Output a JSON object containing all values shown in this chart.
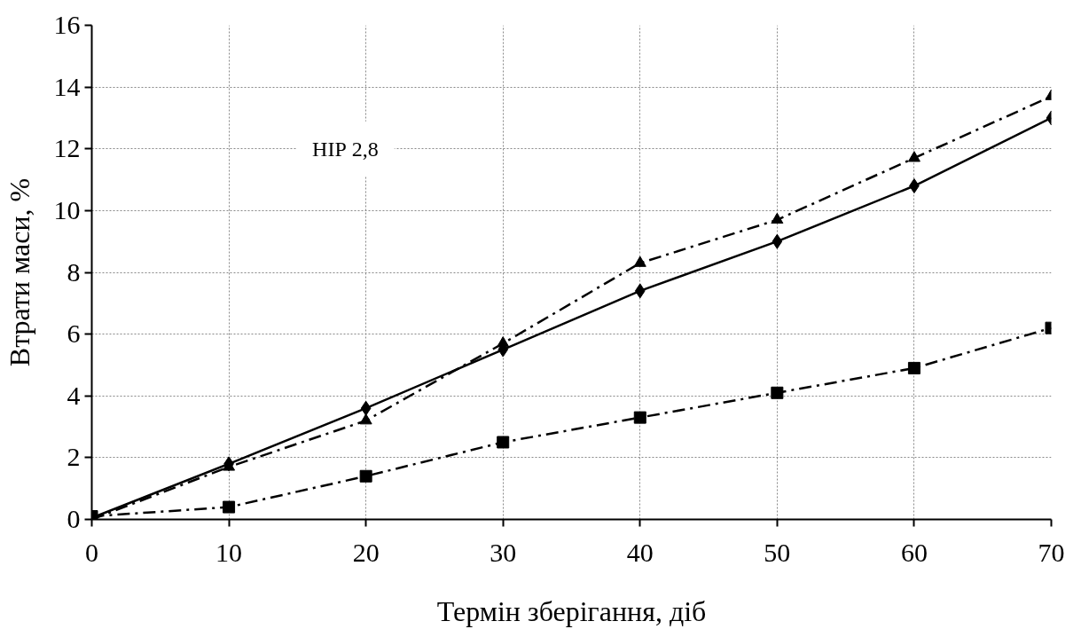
{
  "chart_data": {
    "type": "line",
    "xlabel": "Термін зберігання, діб",
    "ylabel": "Втрати маси, %",
    "x": [
      0,
      10,
      20,
      30,
      40,
      50,
      60,
      70
    ],
    "xlim": [
      0,
      70
    ],
    "xticks": [
      0,
      10,
      20,
      30,
      40,
      50,
      60,
      70
    ],
    "ylim": [
      0,
      16
    ],
    "yticks": [
      0,
      2,
      4,
      6,
      8,
      10,
      12,
      14,
      16
    ],
    "grid": true,
    "annotations": [
      "НІР 2,8"
    ],
    "series": [
      {
        "color": "#000000",
        "marker": "diamond",
        "line_style": "solid",
        "values": [
          0.05,
          1.8,
          3.6,
          5.5,
          7.4,
          9.0,
          10.8,
          13.0
        ]
      },
      {
        "color": "#000000",
        "marker": "triangle",
        "line_style": "dashdot",
        "values": [
          0,
          1.7,
          3.2,
          5.7,
          8.3,
          9.7,
          11.7,
          13.7
        ]
      },
      {
        "color": "#000000",
        "marker": "square",
        "line_style": "dashdot",
        "values": [
          0.1,
          0.4,
          1.4,
          2.5,
          3.3,
          4.1,
          4.9,
          6.2
        ]
      }
    ]
  }
}
